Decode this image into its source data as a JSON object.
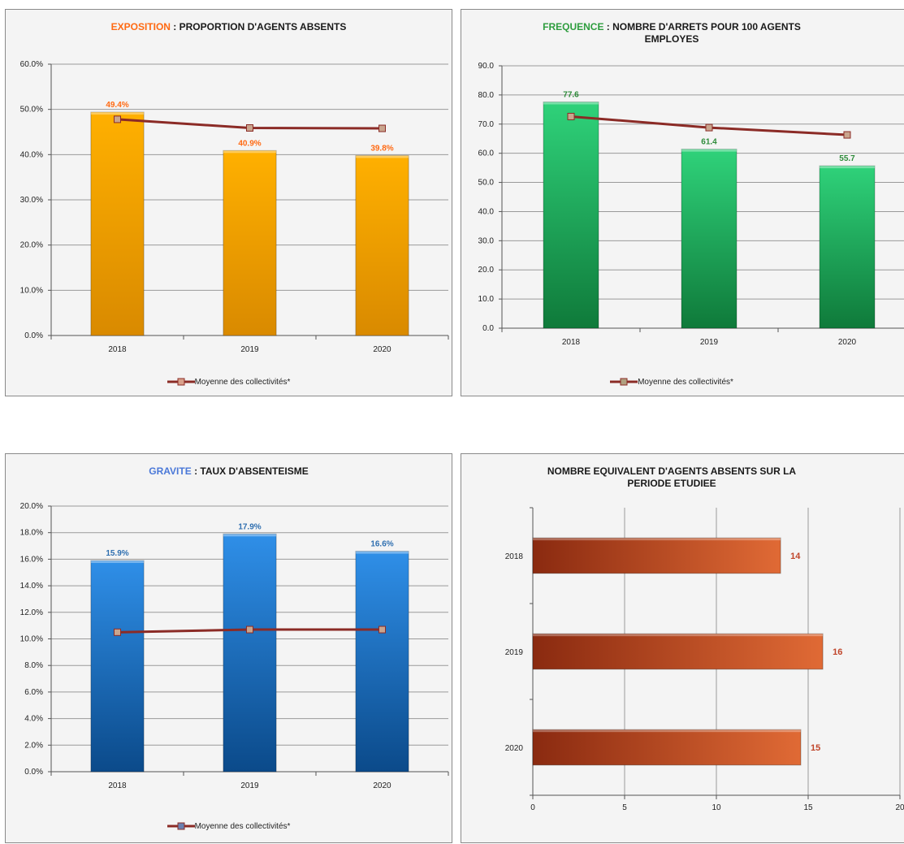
{
  "panels": {
    "exposition": {
      "title_keyword": "EXPOSITION",
      "title_rest": " : PROPORTION D'AGENTS ABSENTS",
      "legend": "Moyenne des collectivités*"
    },
    "frequence": {
      "title_keyword": "FREQUENCE",
      "title_rest": " : NOMBRE D'ARRETS POUR 100 AGENTS",
      "title_line2": "EMPLOYES",
      "legend": "Moyenne des collectivités*"
    },
    "gravite": {
      "title_keyword": "GRAVITE",
      "title_rest": " : TAUX D'ABSENTEISME",
      "legend": "Moyenne des collectivités*"
    },
    "equivalent": {
      "title_line1": "NOMBRE EQUIVALENT D'AGENTS ABSENTS SUR LA",
      "title_line2": "PERIODE ETUDIEE"
    }
  },
  "colors": {
    "orange_keyword": "#ff6a13",
    "green_keyword": "#2e9d3e",
    "blue_keyword": "#4a78d8",
    "avg_line": "#8b2b26",
    "bar_label_orange": "#ff6a13",
    "bar_label_green": "#2e8b3a",
    "bar_label_blue": "#2f6fb0",
    "bar_label_brown": "#c0452a"
  },
  "chart_data": [
    {
      "type": "bar",
      "categories": [
        "2018",
        "2019",
        "2020"
      ],
      "series": [
        {
          "values": [
            49.4,
            40.9,
            39.8
          ],
          "labels": [
            "49.4%",
            "40.9%",
            "39.8%"
          ]
        },
        {
          "name": "Moyenne des collectivités*",
          "type": "line",
          "values": [
            47.8,
            45.9,
            45.8
          ]
        }
      ],
      "ylim": [
        0,
        60
      ],
      "yticks": [
        "0.0%",
        "10.0%",
        "20.0%",
        "30.0%",
        "40.0%",
        "50.0%",
        "60.0%"
      ],
      "ytick_values": [
        0,
        10,
        20,
        30,
        40,
        50,
        60
      ],
      "grid": true,
      "legend": "bottom",
      "bar_color": "orange"
    },
    {
      "type": "bar",
      "categories": [
        "2018",
        "2019",
        "2020"
      ],
      "series": [
        {
          "values": [
            77.6,
            61.4,
            55.7
          ],
          "labels": [
            "77.6",
            "61.4",
            "55.7"
          ]
        },
        {
          "name": "Moyenne des collectivités*",
          "type": "line",
          "values": [
            72.6,
            68.8,
            66.3
          ]
        }
      ],
      "ylim": [
        0,
        90
      ],
      "yticks": [
        "0.0",
        "10.0",
        "20.0",
        "30.0",
        "40.0",
        "50.0",
        "60.0",
        "70.0",
        "80.0",
        "90.0"
      ],
      "ytick_values": [
        0,
        10,
        20,
        30,
        40,
        50,
        60,
        70,
        80,
        90
      ],
      "grid": true,
      "legend": "bottom",
      "bar_color": "green"
    },
    {
      "type": "bar",
      "categories": [
        "2018",
        "2019",
        "2020"
      ],
      "series": [
        {
          "values": [
            15.9,
            17.9,
            16.6
          ],
          "labels": [
            "15.9%",
            "17.9%",
            "16.6%"
          ]
        },
        {
          "name": "Moyenne des collectivités*",
          "type": "line",
          "values": [
            10.5,
            10.7,
            10.7
          ]
        }
      ],
      "ylim": [
        0,
        20
      ],
      "yticks": [
        "0.0%",
        "2.0%",
        "4.0%",
        "6.0%",
        "8.0%",
        "10.0%",
        "12.0%",
        "14.0%",
        "16.0%",
        "18.0%",
        "20.0%"
      ],
      "ytick_values": [
        0,
        2,
        4,
        6,
        8,
        10,
        12,
        14,
        16,
        18,
        20
      ],
      "grid": true,
      "legend": "bottom",
      "bar_color": "blue"
    },
    {
      "type": "bar",
      "orientation": "horizontal",
      "categories": [
        "2018",
        "2019",
        "2020"
      ],
      "series": [
        {
          "values": [
            13.5,
            15.8,
            14.6
          ],
          "labels": [
            "14",
            "16",
            "15"
          ]
        }
      ],
      "xlim": [
        0,
        20
      ],
      "xticks": [
        "0",
        "5",
        "10",
        "15",
        "20"
      ],
      "xtick_values": [
        0,
        5,
        10,
        15,
        20
      ],
      "grid": true,
      "bar_color": "brown"
    }
  ]
}
